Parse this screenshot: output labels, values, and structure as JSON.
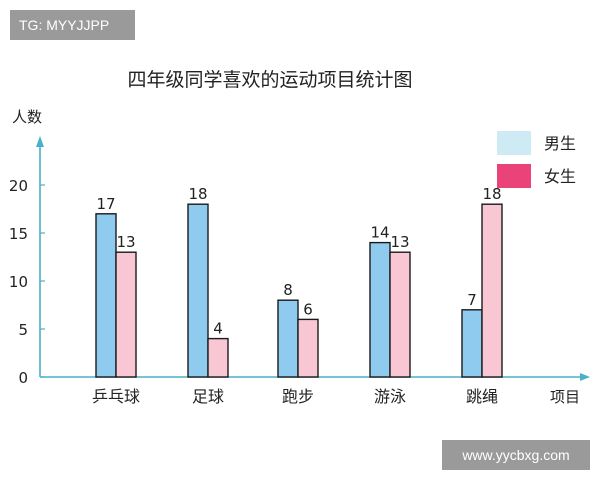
{
  "watermarks": {
    "top_left": "TG: MYYJJPP",
    "bottom_right": "www.yycbxg.com"
  },
  "colors": {
    "male": "#8fcbef",
    "female": "#f9c7d3",
    "legend_male": "#cdeaf5",
    "legend_female": "#e9437a",
    "axis": "#4ab0c9"
  },
  "chart_data": {
    "type": "bar",
    "title": "四年级同学喜欢的运动项目统计图",
    "ylabel": "人数",
    "xlabel": "项目",
    "ylim": [
      0,
      20
    ],
    "yticks": [
      0,
      5,
      10,
      15,
      20
    ],
    "categories": [
      "乒乓球",
      "足球",
      "跑步",
      "游泳",
      "跳绳"
    ],
    "series": [
      {
        "name": "男生",
        "values": [
          17,
          18,
          8,
          14,
          7
        ]
      },
      {
        "name": "女生",
        "values": [
          13,
          4,
          6,
          13,
          18
        ]
      }
    ],
    "legend": "top-right",
    "grid": false
  }
}
